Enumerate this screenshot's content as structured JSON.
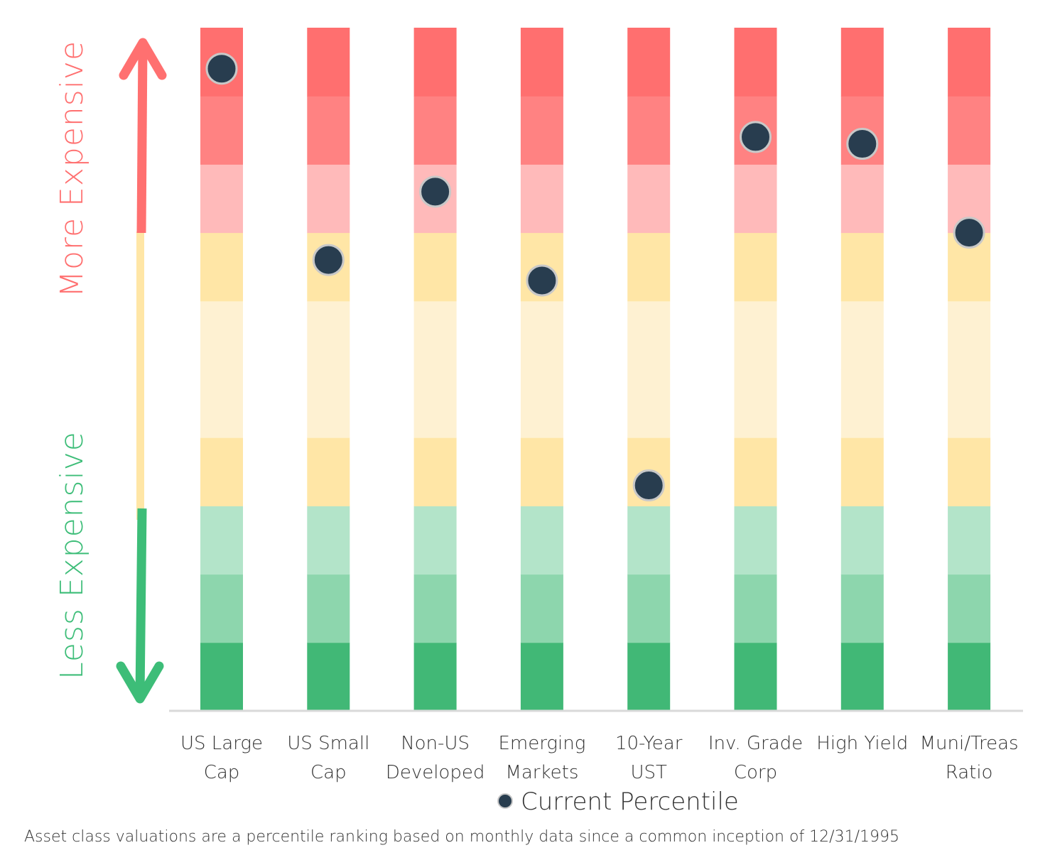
{
  "chart_data": {
    "type": "scatter",
    "categories": [
      [
        "US Large",
        "Cap"
      ],
      [
        "US Small",
        "Cap"
      ],
      [
        "Non-US",
        "Developed"
      ],
      [
        "Emerging",
        "Markets"
      ],
      [
        "10-Year",
        "UST"
      ],
      [
        "Inv. Grade",
        "Corp"
      ],
      [
        "High Yield",
        ""
      ],
      [
        "Muni/Treas",
        "Ratio"
      ]
    ],
    "series": [
      {
        "name": "Current Percentile",
        "values": [
          94,
          66,
          76,
          63,
          33,
          84,
          83,
          70
        ]
      }
    ],
    "ylim": [
      0,
      100
    ],
    "band_count": 10,
    "band_colors": [
      "#41b876",
      "#8dd6ad",
      "#b3e4c9",
      "#ffe6a6",
      "#fef1d2",
      "#fef1d2",
      "#ffe6a6",
      "#ffbaba",
      "#ff8282",
      "#ff6f6f"
    ],
    "marker_color": "#283d4f",
    "marker_edge_color": "#c8c8c8",
    "legend_position": "bottom-center"
  },
  "labels": {
    "more_expensive": "More Expensive",
    "less_expensive": "Less Expensive",
    "more_color": "#ff7070",
    "less_color": "#3dbd78",
    "neutral_color": "#ffe6a6",
    "footnote": "Asset class valuations are a percentile ranking based on monthly data since a common inception of 12/31/1995"
  }
}
